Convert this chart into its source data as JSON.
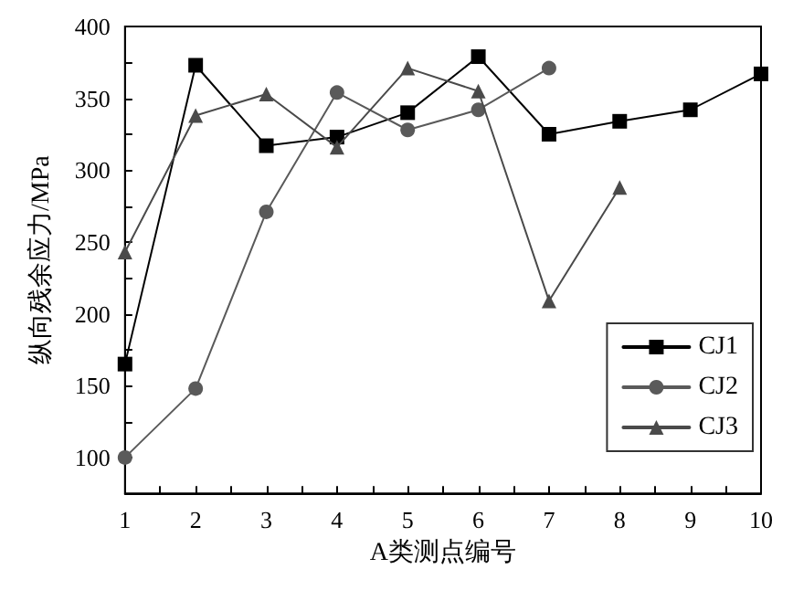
{
  "chart_data": {
    "type": "line",
    "xlabel": "A类测点编号",
    "ylabel": "纵向残余应力/MPa",
    "x": [
      1,
      2,
      3,
      4,
      5,
      6,
      7,
      8,
      9,
      10
    ],
    "series": [
      {
        "name": "CJ1",
        "color": "#000000",
        "marker": "square",
        "values": [
          165,
          373,
          317,
          323,
          340,
          379,
          325,
          334,
          342,
          367
        ]
      },
      {
        "name": "CJ2",
        "color": "#5a5a5a",
        "marker": "circle",
        "values": [
          100,
          148,
          271,
          354,
          328,
          342,
          371,
          null,
          null,
          null
        ]
      },
      {
        "name": "CJ3",
        "color": "#4a4a4a",
        "marker": "triangle",
        "values": [
          243,
          338,
          353,
          316,
          371,
          355,
          209,
          288,
          null,
          null
        ]
      }
    ],
    "xlim": [
      1,
      10
    ],
    "xticks": [
      1,
      {
        "value": 1.5,
        "label": null
      },
      2,
      {
        "value": 2.5,
        "label": null
      },
      3,
      {
        "value": 3.5,
        "label": null
      },
      4,
      {
        "value": 4.5,
        "label": null
      },
      5,
      {
        "value": 5.5,
        "label": null
      },
      6,
      {
        "value": 6.5,
        "label": null
      },
      7,
      {
        "value": 7.5,
        "label": null
      },
      8,
      {
        "value": 8.5,
        "label": null
      },
      9,
      {
        "value": 9.5,
        "label": null
      },
      10
    ],
    "ylim": [
      75,
      400
    ],
    "yticks": [
      100,
      {
        "value": 125,
        "label": null
      },
      150,
      {
        "value": 175,
        "label": null
      },
      200,
      {
        "value": 225,
        "label": null
      },
      250,
      {
        "value": 275,
        "label": null
      },
      300,
      {
        "value": 325,
        "label": null
      },
      350,
      {
        "value": 375,
        "label": null
      },
      400
    ],
    "legend": "bottom right",
    "grid": false,
    "line_style": "solid"
  }
}
